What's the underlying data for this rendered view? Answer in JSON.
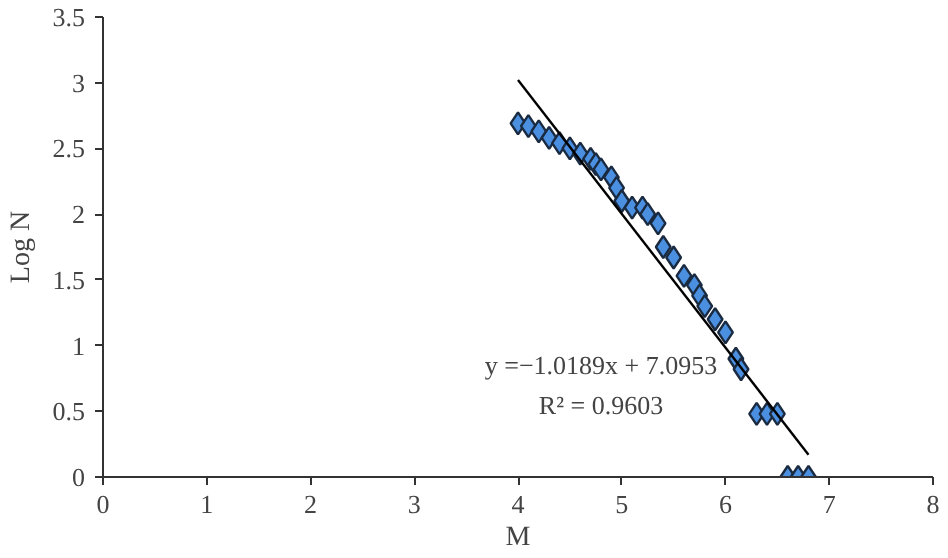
{
  "chart_data": {
    "type": "scatter",
    "xlabel": "M",
    "ylabel": "Log N",
    "xlim": [
      0,
      8
    ],
    "ylim": [
      0,
      3.5
    ],
    "xticks": [
      0,
      1,
      2,
      3,
      4,
      5,
      6,
      7,
      8
    ],
    "yticks": [
      0,
      0.5,
      1,
      1.5,
      2,
      2.5,
      3,
      3.5
    ],
    "grid": false,
    "marker": "diamond",
    "annotations": [
      "y =−1.0189x + 7.0953",
      "R² = 0.9603"
    ],
    "series": [
      {
        "color": "#4a8fe0",
        "x": [
          4.0,
          4.1,
          4.2,
          4.3,
          4.4,
          4.5,
          4.6,
          4.7,
          4.75,
          4.8,
          4.9,
          4.95,
          5.0,
          5.1,
          5.2,
          5.25,
          5.35,
          5.4,
          5.5,
          5.6,
          5.7,
          5.75,
          5.8,
          5.9,
          6.0,
          6.1,
          6.15,
          6.3,
          6.4,
          6.5,
          6.6,
          6.7,
          6.8
        ],
        "values": [
          2.69,
          2.67,
          2.63,
          2.58,
          2.54,
          2.5,
          2.46,
          2.42,
          2.38,
          2.34,
          2.28,
          2.2,
          2.1,
          2.05,
          2.05,
          2.0,
          1.93,
          1.75,
          1.67,
          1.53,
          1.46,
          1.38,
          1.3,
          1.2,
          1.1,
          0.9,
          0.82,
          0.48,
          0.48,
          0.48,
          0,
          0,
          0
        ]
      },
      {
        "type": "line",
        "marker": "none",
        "color": "#000000",
        "x": [
          4.0,
          6.8
        ],
        "values": [
          3.02,
          0.17
        ]
      }
    ]
  }
}
